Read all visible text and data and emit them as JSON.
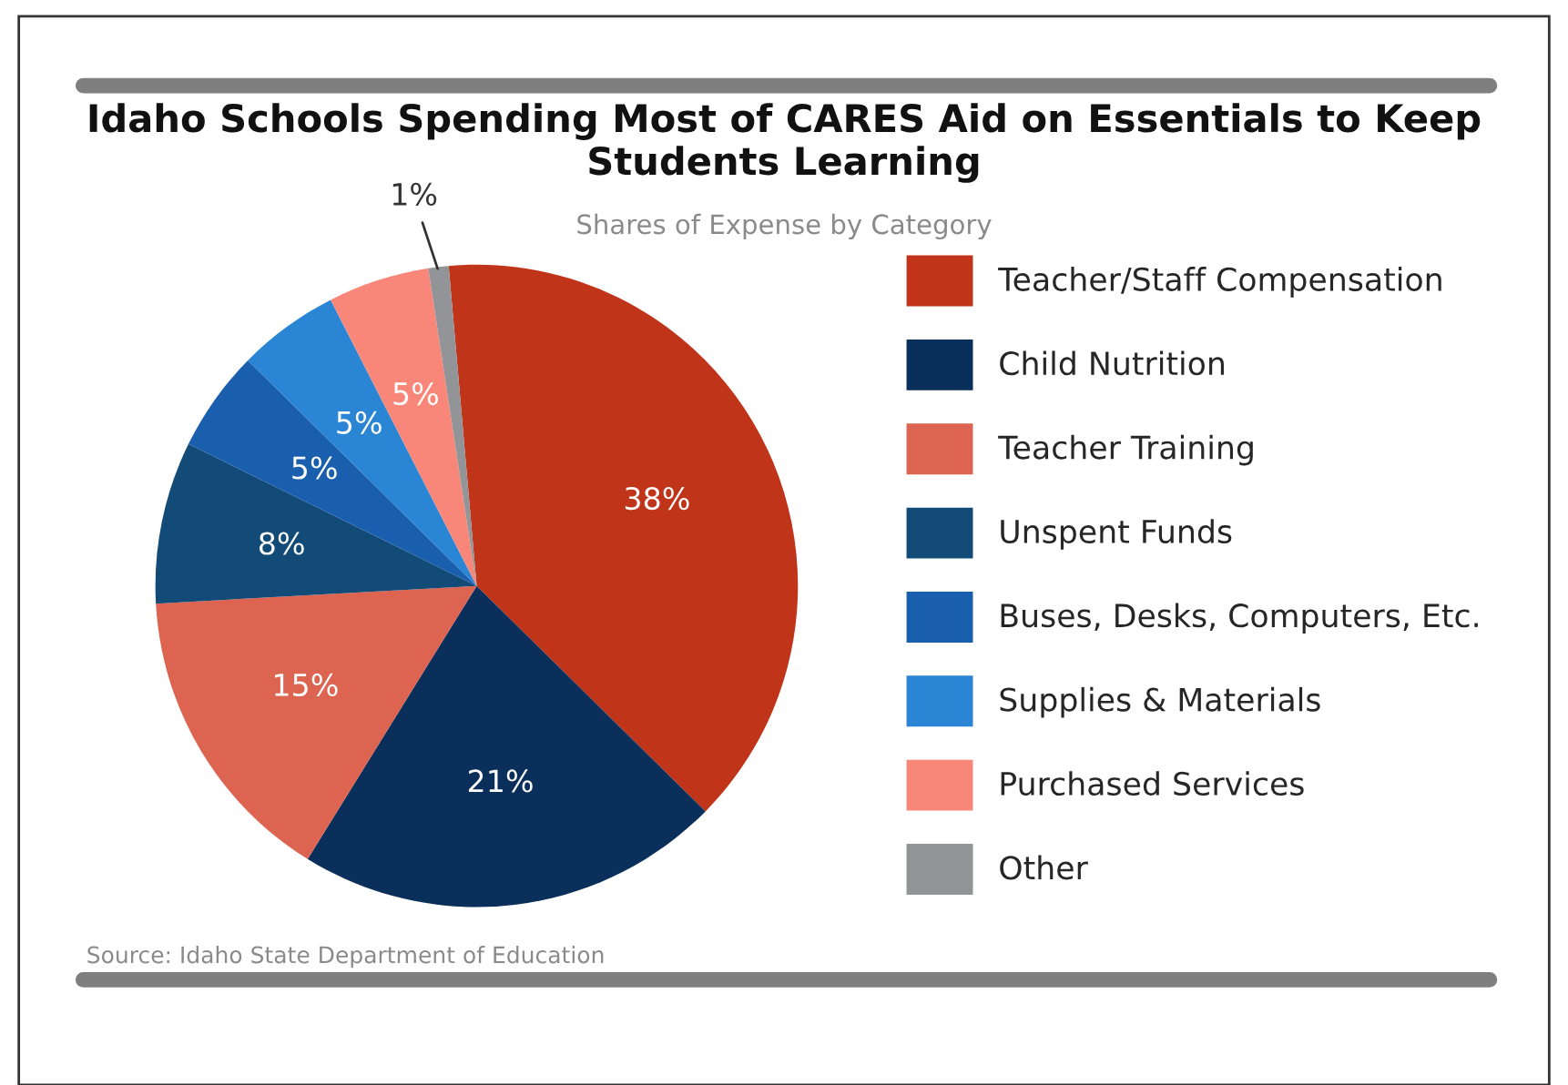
{
  "chart_data": {
    "type": "pie",
    "title": "Idaho Schools Spending Most of CARES Aid on Essentials to Keep Students Learning",
    "subtitle": "Shares of Expense by Category",
    "categories": [
      "Teacher/Staff Compensation",
      "Child Nutrition",
      "Teacher Training",
      "Unspent Funds",
      "Buses, Desks, Computers, Etc.",
      "Supplies & Materials",
      "Purchased Services",
      "Other"
    ],
    "values": [
      38,
      21,
      15,
      8,
      5,
      5,
      5,
      1
    ],
    "value_labels": [
      "38%",
      "21%",
      "15%",
      "8%",
      "5%",
      "5%",
      "5%",
      "1%"
    ],
    "colors": [
      "#c0341a",
      "#0b2f5b",
      "#dc6450",
      "#134b78",
      "#1a5fae",
      "#2a86d4",
      "#f8877a",
      "#929497"
    ],
    "legend": "right",
    "annotations": [
      "Source: Idaho State Department of Education"
    ]
  }
}
